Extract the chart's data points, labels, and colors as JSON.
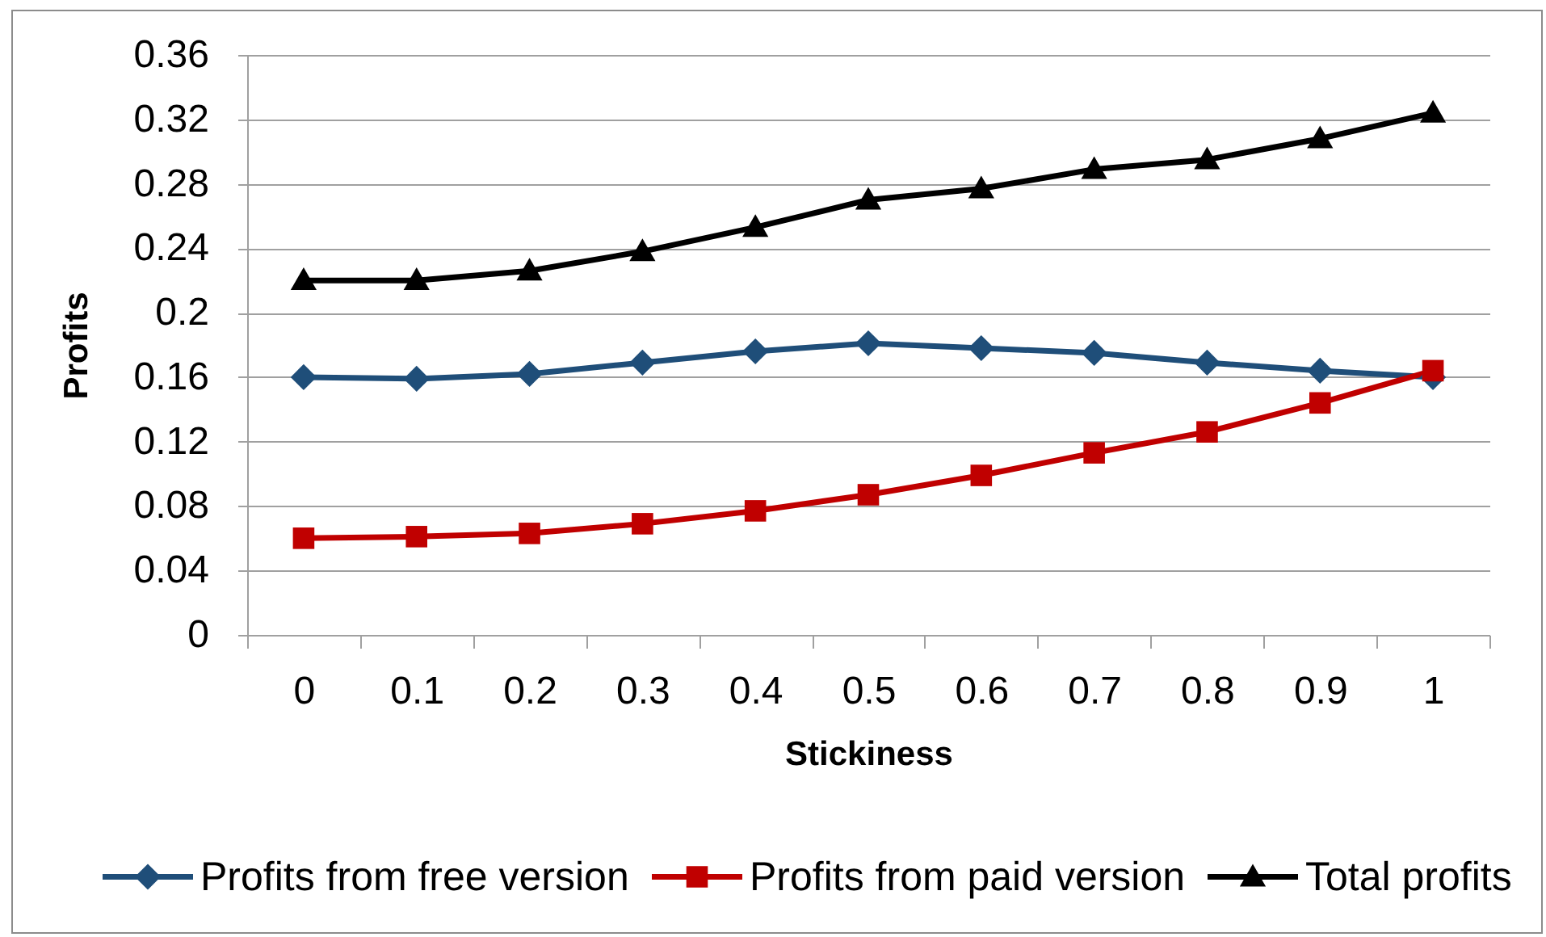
{
  "chart_data": {
    "type": "line",
    "xlabel": "Stickiness",
    "ylabel": "Profits",
    "categories": [
      "0",
      "0.1",
      "0.2",
      "0.3",
      "0.4",
      "0.5",
      "0.6",
      "0.7",
      "0.8",
      "0.9",
      "1"
    ],
    "ylim": [
      0,
      0.36
    ],
    "yticks": [
      0,
      0.04,
      0.08,
      0.12,
      0.16,
      0.2,
      0.24,
      0.28,
      0.32,
      0.36
    ],
    "grid": "y",
    "legend": "bottom",
    "line_style": "solid",
    "series": [
      {
        "name": "Profits from free version",
        "color": "#1f4e79",
        "marker": "diamond",
        "values": [
          0.16,
          0.159,
          0.162,
          0.169,
          0.176,
          0.181,
          0.178,
          0.175,
          0.169,
          0.164,
          0.16
        ]
      },
      {
        "name": "Profits from paid version",
        "color": "#c00000",
        "marker": "square",
        "values": [
          0.06,
          0.061,
          0.063,
          0.069,
          0.077,
          0.087,
          0.099,
          0.113,
          0.126,
          0.144,
          0.164
        ]
      },
      {
        "name": "Total profits",
        "color": "#000000",
        "marker": "triangle",
        "values": [
          0.22,
          0.22,
          0.226,
          0.238,
          0.253,
          0.27,
          0.277,
          0.289,
          0.295,
          0.308,
          0.324
        ]
      }
    ]
  }
}
